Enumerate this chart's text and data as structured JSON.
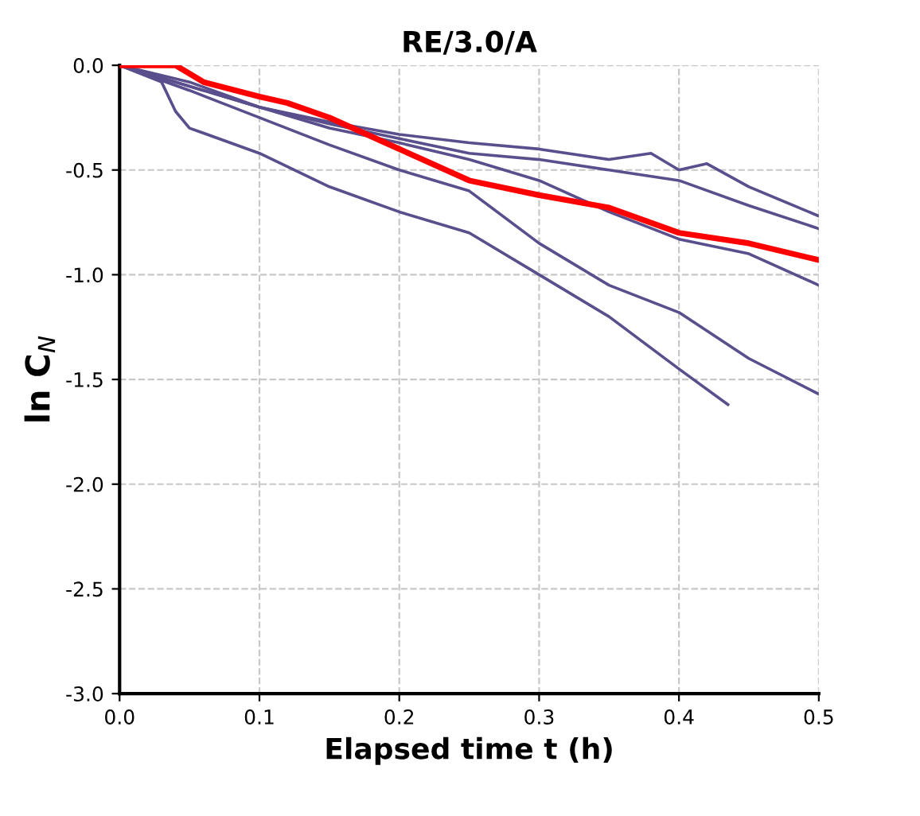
{
  "chart_data": {
    "type": "line",
    "title": "RE/3.0/A",
    "xlabel": "Elapsed time t (h)",
    "ylabel": "ln C$_{N}$",
    "xlim": [
      0,
      0.5
    ],
    "ylim": [
      -3,
      0
    ],
    "xticks": [
      {
        "value": 0,
        "label": "0.0"
      },
      0.1,
      0.2,
      0.3,
      0.4,
      0.5
    ],
    "yticks": [
      {
        "value": -3,
        "label": "-3.0"
      },
      -2.5,
      {
        "value": -2,
        "label": "-2.0"
      },
      -1.5,
      {
        "value": -1,
        "label": "-1.0"
      },
      -0.5,
      {
        "value": 0,
        "label": "0.0"
      }
    ],
    "grid": true,
    "line_style": "solid",
    "series": [
      {
        "color": "#5a4f8c",
        "x": [
          0,
          0.05,
          0.1,
          0.15,
          0.2,
          0.25,
          0.3,
          0.35,
          0.38,
          0.4,
          0.42,
          0.45,
          0.5
        ],
        "values": [
          0,
          -0.08,
          -0.2,
          -0.27,
          -0.33,
          -0.37,
          -0.4,
          -0.45,
          -0.42,
          -0.5,
          -0.47,
          -0.58,
          -0.72
        ]
      },
      {
        "color": "#5a4f8c",
        "x": [
          0,
          0.05,
          0.1,
          0.15,
          0.2,
          0.25,
          0.3,
          0.35,
          0.4,
          0.45,
          0.5
        ],
        "values": [
          0,
          -0.1,
          -0.2,
          -0.28,
          -0.35,
          -0.42,
          -0.45,
          -0.5,
          -0.55,
          -0.67,
          -0.78
        ]
      },
      {
        "color": "#5a4f8c",
        "x": [
          0,
          0.05,
          0.1,
          0.15,
          0.2,
          0.25,
          0.3,
          0.35,
          0.4,
          0.45,
          0.5
        ],
        "values": [
          0,
          -0.1,
          -0.2,
          -0.3,
          -0.37,
          -0.45,
          -0.55,
          -0.7,
          -0.83,
          -0.9,
          -1.05
        ]
      },
      {
        "color": "#5a4f8c",
        "x": [
          0,
          0.05,
          0.1,
          0.15,
          0.2,
          0.25,
          0.3,
          0.35,
          0.4,
          0.45,
          0.5
        ],
        "values": [
          0,
          -0.12,
          -0.25,
          -0.38,
          -0.5,
          -0.6,
          -0.85,
          -1.05,
          -1.18,
          -1.4,
          -1.57
        ]
      },
      {
        "color": "#5a4f8c",
        "x": [
          0,
          0.03,
          0.04,
          0.05,
          0.1,
          0.15,
          0.2,
          0.25,
          0.3,
          0.35,
          0.4,
          0.435
        ],
        "values": [
          0,
          -0.08,
          -0.22,
          -0.3,
          -0.42,
          -0.58,
          -0.7,
          -0.8,
          -1.0,
          -1.2,
          -1.45,
          -1.62
        ]
      },
      {
        "color": "#ff0000",
        "x": [
          0,
          0.04,
          0.06,
          0.1,
          0.12,
          0.15,
          0.2,
          0.25,
          0.3,
          0.35,
          0.4,
          0.45,
          0.5
        ],
        "values": [
          0,
          0,
          -0.08,
          -0.15,
          -0.18,
          -0.25,
          -0.4,
          -0.55,
          -0.62,
          -0.68,
          -0.8,
          -0.85,
          -0.93
        ]
      }
    ]
  }
}
